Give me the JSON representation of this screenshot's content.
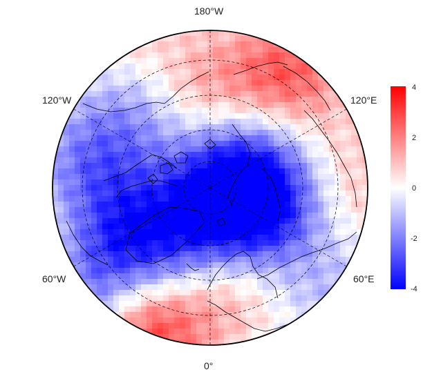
{
  "map": {
    "projection": "north-polar-stereographic",
    "longitude_labels": {
      "top": "180°W",
      "bottom": "0°",
      "upper_left": "120°W",
      "upper_right": "120°E",
      "lower_left": "60°W",
      "lower_right": "60°E"
    },
    "colorbar": {
      "ticks": [
        "4",
        "2",
        "0",
        "-2",
        "-4"
      ],
      "min": -4,
      "max": 4,
      "colors": {
        "max": "#ff0000",
        "mid": "#ffffff",
        "min": "#0000ff"
      }
    },
    "gridlines": {
      "style": "dashed",
      "meridians_deg": 60
    }
  }
}
